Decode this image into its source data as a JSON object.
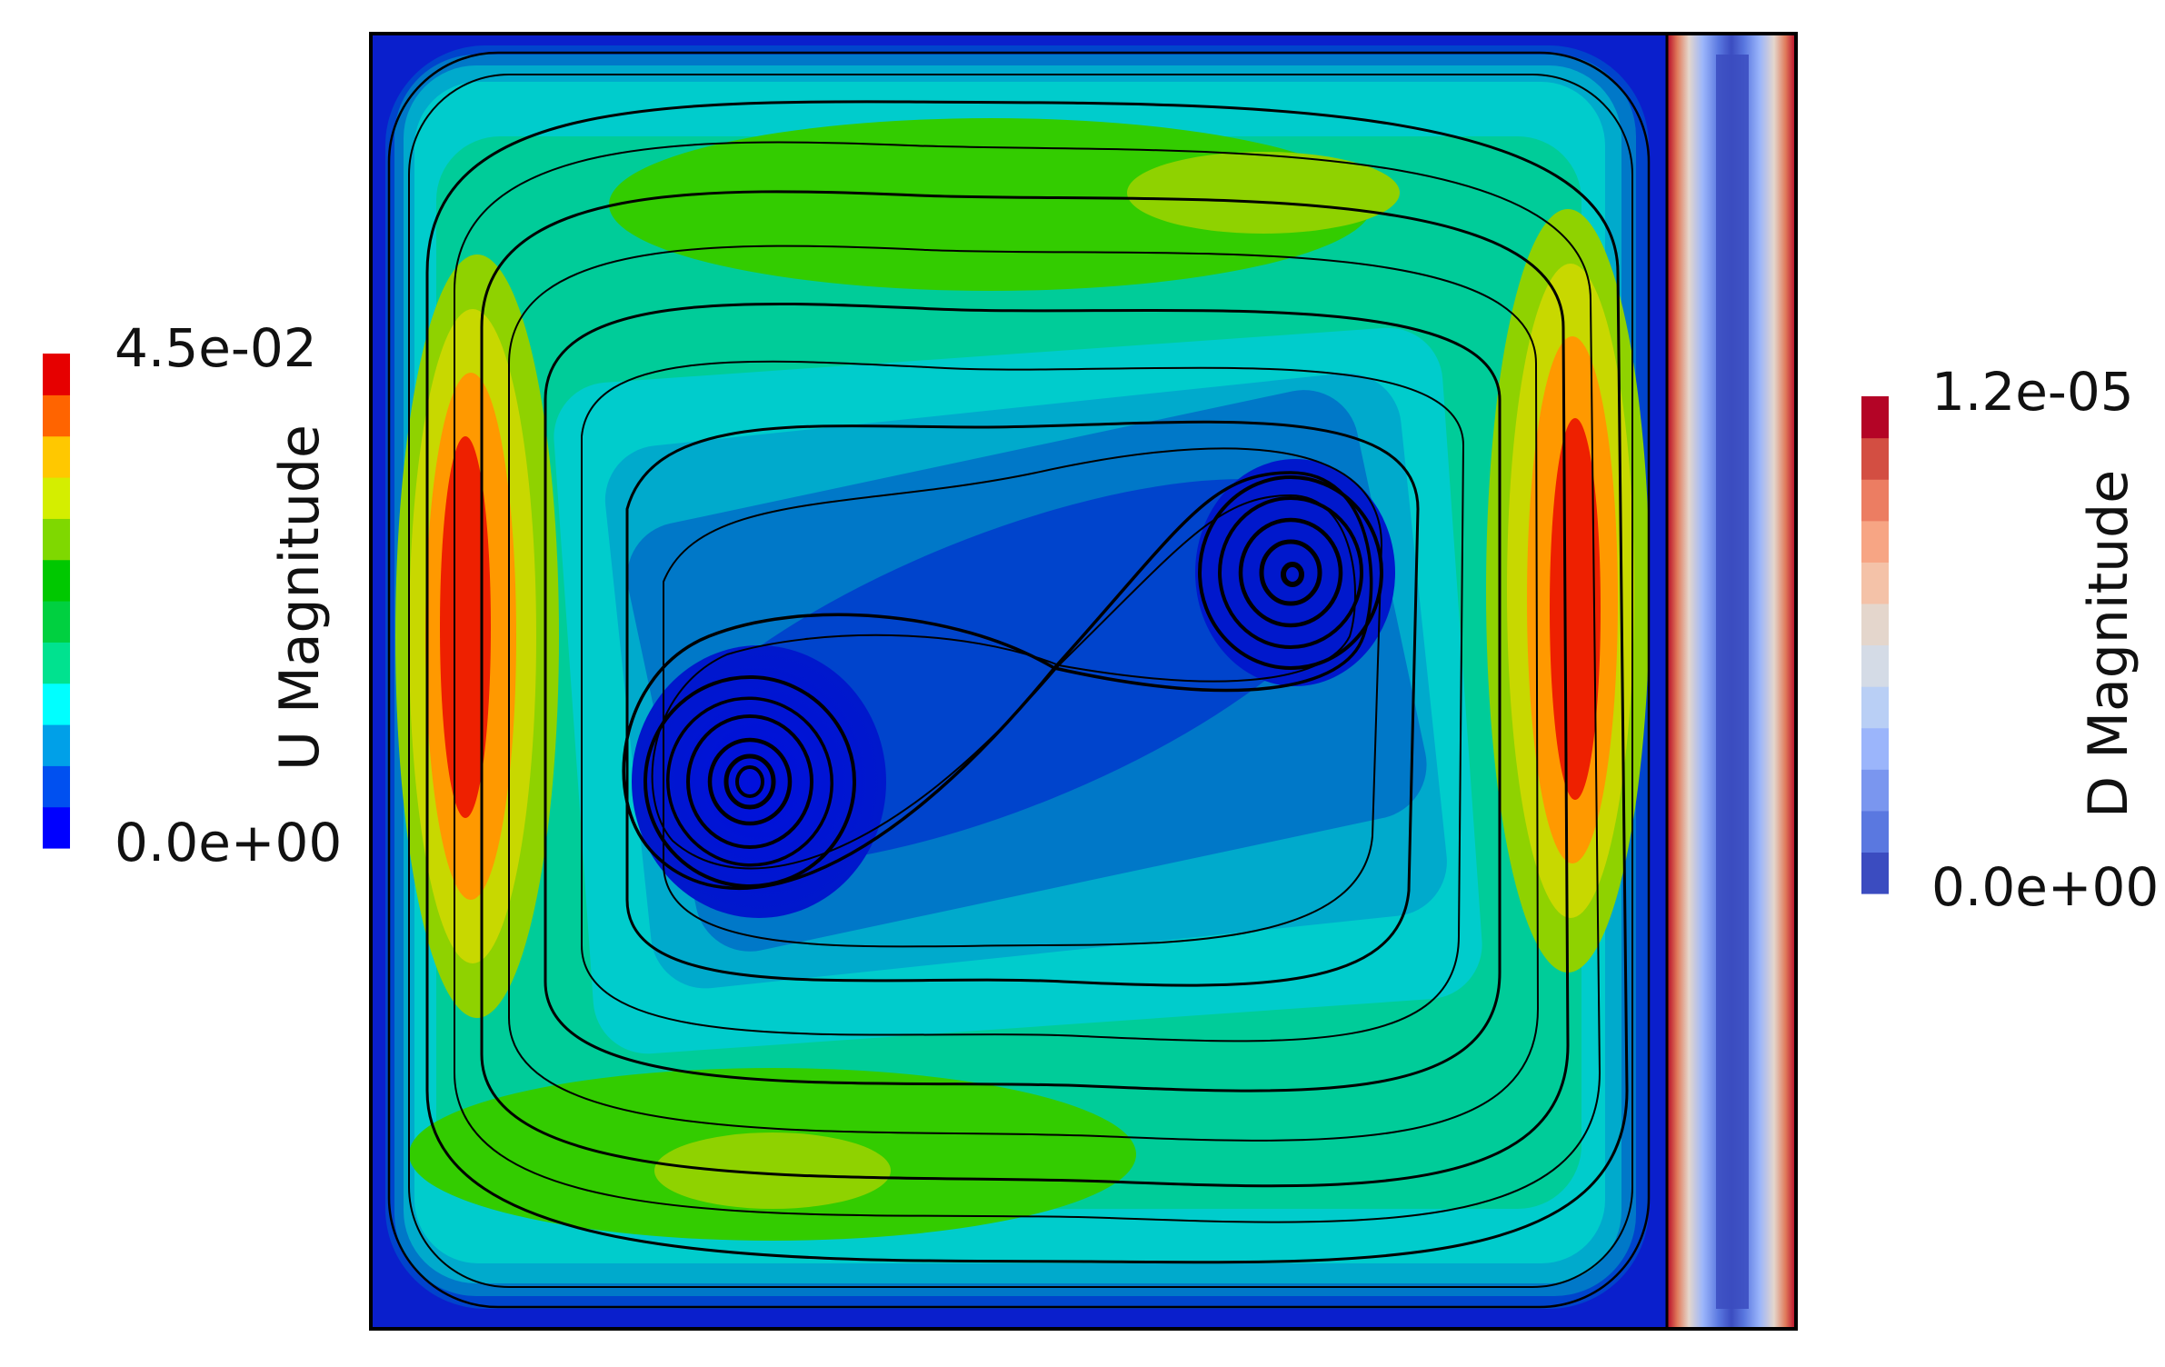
{
  "left_legend": {
    "title": "U Magnitude",
    "max_label": "4.5e-02",
    "min_label": "0.0e+00",
    "range": [
      0.0,
      0.045
    ],
    "colors": [
      "#0000ff",
      "#0050f0",
      "#00a0e8",
      "#00ffff",
      "#00e28f",
      "#00d040",
      "#00c800",
      "#7fd800",
      "#d4ee00",
      "#ffc800",
      "#ff6400",
      "#e60000"
    ]
  },
  "right_legend": {
    "title": "D Magnitude",
    "max_label": "1.2e-05",
    "min_label": "0.0e+00",
    "range": [
      0.0,
      1.2e-05
    ],
    "colors": [
      "#3b4cc0",
      "#5a78e0",
      "#7a96ef",
      "#9bb5fb",
      "#b9cff5",
      "#d4dbe6",
      "#e4d6cc",
      "#f4c2a8",
      "#f7a584",
      "#ec7d62",
      "#d34e42",
      "#b40426"
    ]
  },
  "fluid_contour_colors": [
    "#0a1fcc",
    "#0044cc",
    "#0078c8",
    "#00aacc",
    "#00cccc",
    "#00cc99",
    "#00cc55",
    "#33cc00",
    "#8fd200",
    "#c8d800",
    "#ff9900",
    "#ee2000"
  ],
  "streamline_color": "#000000"
}
